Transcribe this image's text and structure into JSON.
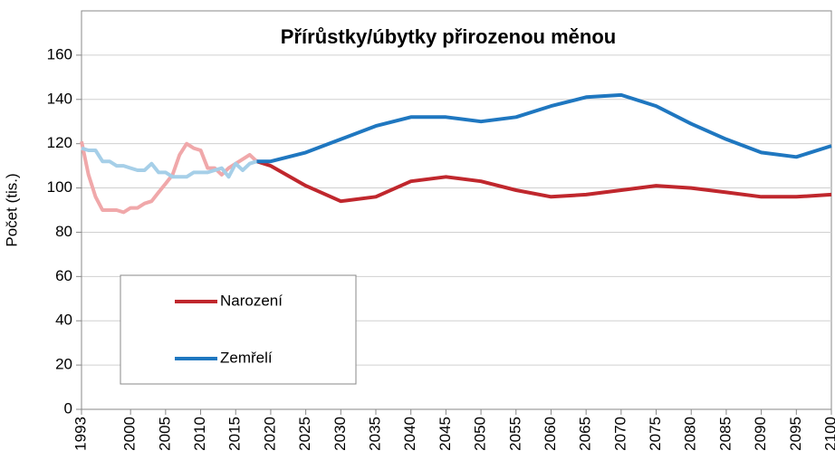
{
  "chart_data": {
    "type": "line",
    "title": "Přírůstky/úbytky přirozenou měnou",
    "y_label": "Počet (tis.)",
    "x": [
      1993,
      1994,
      1995,
      1996,
      1997,
      1998,
      1999,
      2000,
      2001,
      2002,
      2003,
      2004,
      2005,
      2006,
      2007,
      2008,
      2009,
      2010,
      2011,
      2012,
      2013,
      2014,
      2015,
      2016,
      2017,
      2018,
      2020,
      2025,
      2030,
      2035,
      2040,
      2045,
      2050,
      2055,
      2060,
      2065,
      2070,
      2075,
      2080,
      2085,
      2090,
      2095,
      2100
    ],
    "projection_from": 2018,
    "series": [
      {
        "name": "Narození",
        "color": "#c0272d",
        "history_color": "#f0a8aa",
        "values": [
          121,
          106,
          96,
          90,
          90,
          90,
          89,
          91,
          91,
          93,
          94,
          98,
          102,
          106,
          115,
          120,
          118,
          117,
          109,
          109,
          106,
          109,
          111,
          113,
          115,
          112,
          110,
          101,
          94,
          96,
          103,
          105,
          103,
          99,
          96,
          97,
          99,
          101,
          100,
          98,
          96,
          96,
          97
        ]
      },
      {
        "name": "Zemřelí",
        "color": "#1f77c0",
        "history_color": "#a6cfe8",
        "values": [
          118,
          117,
          117,
          112,
          112,
          110,
          110,
          109,
          108,
          108,
          111,
          107,
          107,
          105,
          105,
          105,
          107,
          107,
          107,
          108,
          109,
          105,
          111,
          108,
          111,
          112,
          112,
          116,
          122,
          128,
          132,
          132,
          130,
          132,
          137,
          141,
          142,
          137,
          129,
          122,
          116,
          114,
          119
        ]
      }
    ],
    "xlim": [
      1993,
      2100
    ],
    "xticks": [
      1993,
      2000,
      2005,
      2010,
      2015,
      2020,
      2025,
      2030,
      2035,
      2040,
      2045,
      2050,
      2055,
      2060,
      2065,
      2070,
      2075,
      2080,
      2085,
      2090,
      2095,
      2100
    ],
    "ylim": [
      0,
      180
    ],
    "yticks": [
      0,
      20,
      40,
      60,
      80,
      100,
      120,
      140,
      160
    ],
    "grid": true,
    "legend": "lower-left"
  }
}
